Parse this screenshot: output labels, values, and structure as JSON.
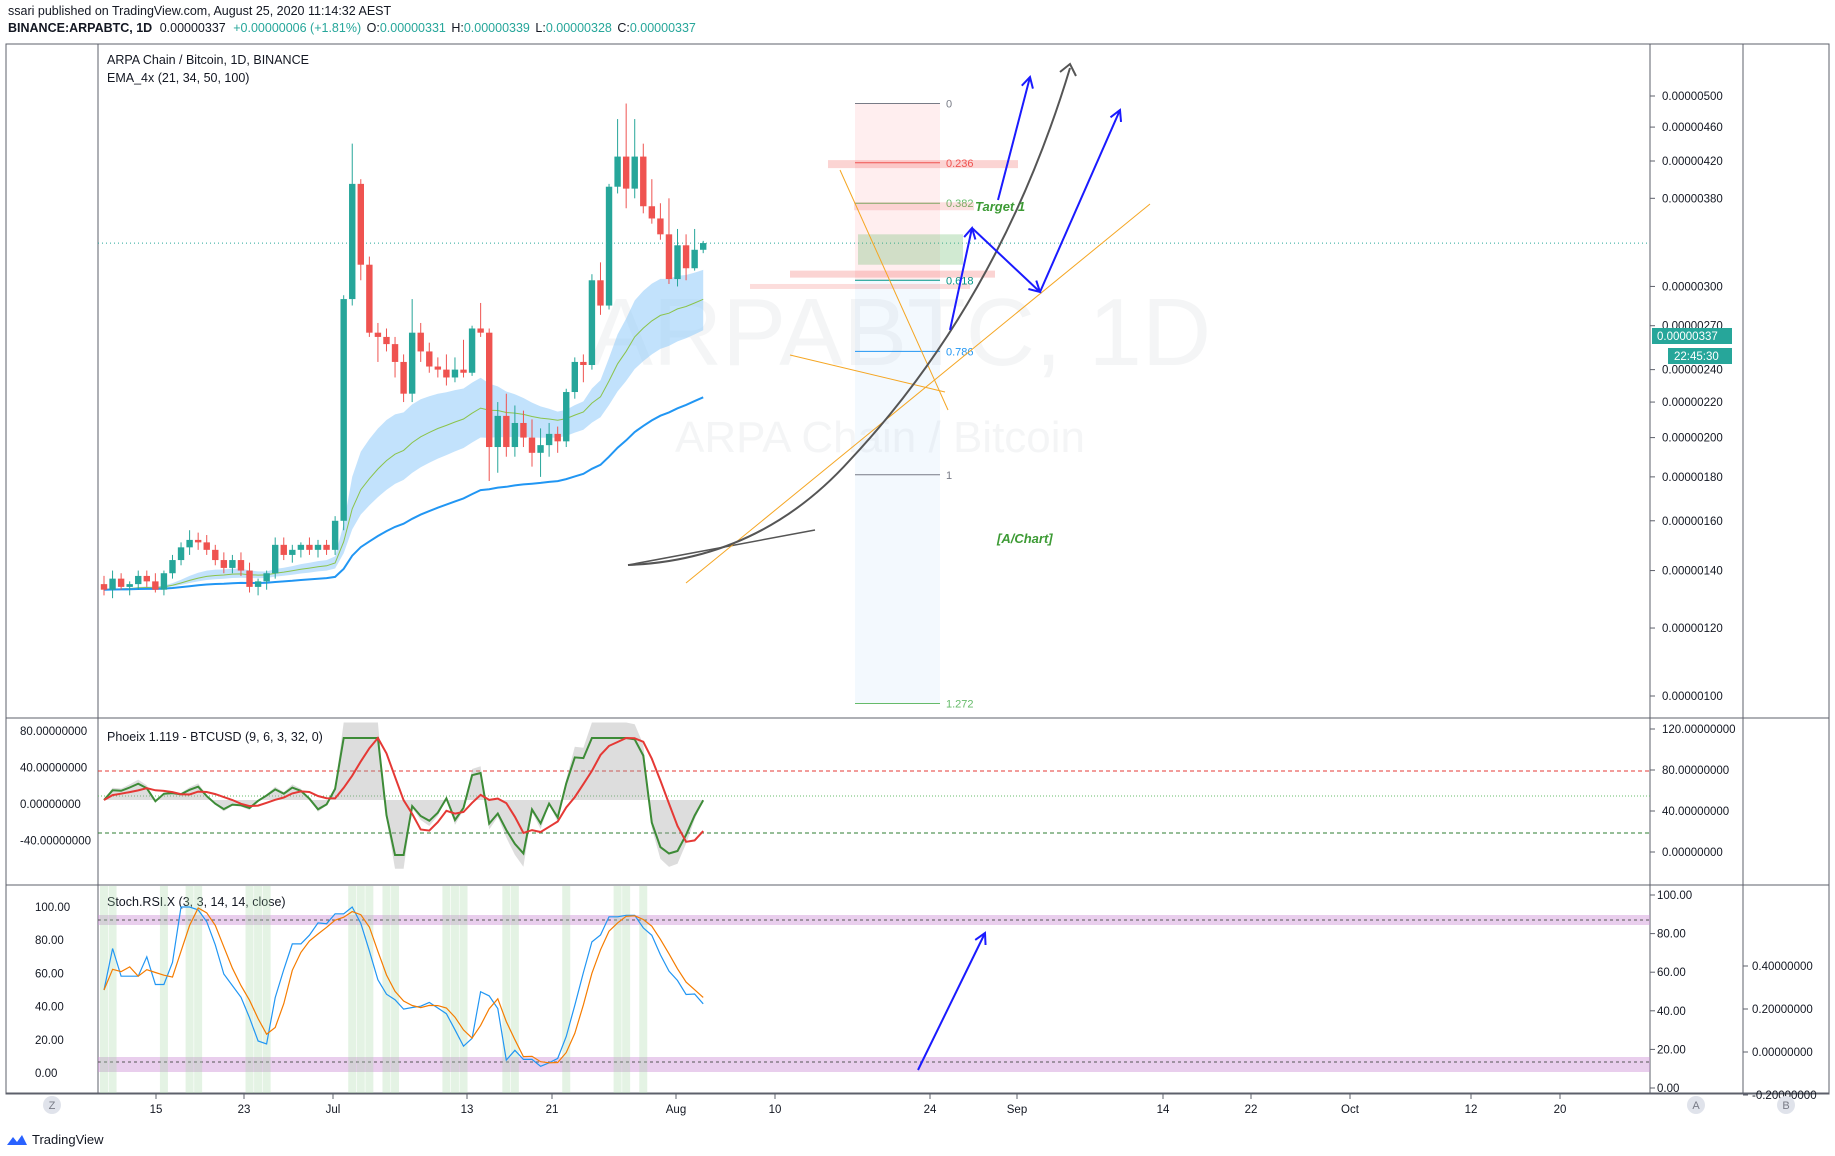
{
  "header": {
    "published": "ssari published on TradingView.com, August 25, 2020 11:14:32 AEST",
    "symbol": "BINANCE:ARPABTC, 1D",
    "last": "0.00000337",
    "change": "+0.00000006 (+1.81%)",
    "o_label": "O:",
    "o": "0.00000331",
    "h_label": "H:",
    "h": "0.00000339",
    "l_label": "L:",
    "l": "0.00000328",
    "c_label": "C:",
    "c": "0.00000337"
  },
  "main_pane": {
    "title": "ARPA Chain / Bitcoin, 1D, BINANCE",
    "indicator": "EMA_4x (21, 34, 50, 100)",
    "watermark_symbol": "ARPABTC, 1D",
    "watermark_name": "ARPA Chain / Bitcoin",
    "price_tag": "0.00000337",
    "countdown": "22:45:30",
    "annotations": {
      "target": "Target 1",
      "signature": "[A/Chart]"
    }
  },
  "osc_pane": {
    "title": "Phoeix 1.119 - BTCUSD (9, 6, 3, 32, 0)"
  },
  "stoch_pane": {
    "title": "Stoch.RSI.X (3, 3, 14, 14, close)"
  },
  "bottom_bar": {
    "left_btn": "Z",
    "right_btn_a": "A",
    "right_btn_b": "B"
  },
  "footer": {
    "brand": "TradingView"
  },
  "colors": {
    "up": "#26a69a",
    "down": "#ef5350",
    "ema_fast": "#2196f3",
    "cloud": "#90caf9",
    "arrow": "#1a1aff",
    "curve": "#555555",
    "fib_line": "#f5a623",
    "phoenix_green": "#3d8b37",
    "phoenix_red": "#e53935",
    "stoch_blue": "#2196f3",
    "stoch_orange": "#f57c00",
    "band": "#ce93d8"
  },
  "chart_data": [
    {
      "type": "candlestick",
      "title": "ARPA Chain / Bitcoin, 1D, BINANCE",
      "x_ticks": [
        "15",
        "23",
        "Jul",
        "13",
        "21",
        "Aug",
        "10",
        "24",
        "Sep",
        "14",
        "22",
        "Oct",
        "12",
        "20"
      ],
      "y_ticks": [
        "0.00000500",
        "0.00000460",
        "0.00000420",
        "0.00000380",
        "0.00000300",
        "0.00000270",
        "0.00000240",
        "0.00000220",
        "0.00000200",
        "0.00000180",
        "0.00000160",
        "0.00000140",
        "0.00000120",
        "0.00000100"
      ],
      "y_scale": "log",
      "ylim": [
        9.5e-07,
        5.4e-06
      ],
      "candles": [
        [
          1.35e-06,
          1.38e-06,
          1.31e-06,
          1.33e-06
        ],
        [
          1.33e-06,
          1.4e-06,
          1.3e-06,
          1.37e-06
        ],
        [
          1.37e-06,
          1.39e-06,
          1.33e-06,
          1.34e-06
        ],
        [
          1.34e-06,
          1.36e-06,
          1.31e-06,
          1.35e-06
        ],
        [
          1.35e-06,
          1.4e-06,
          1.33e-06,
          1.38e-06
        ],
        [
          1.38e-06,
          1.4e-06,
          1.34e-06,
          1.36e-06
        ],
        [
          1.36e-06,
          1.39e-06,
          1.32e-06,
          1.33e-06
        ],
        [
          1.33e-06,
          1.4e-06,
          1.31e-06,
          1.39e-06
        ],
        [
          1.39e-06,
          1.46e-06,
          1.37e-06,
          1.44e-06
        ],
        [
          1.44e-06,
          1.51e-06,
          1.42e-06,
          1.49e-06
        ],
        [
          1.49e-06,
          1.56e-06,
          1.46e-06,
          1.52e-06
        ],
        [
          1.52e-06,
          1.55e-06,
          1.48e-06,
          1.51e-06
        ],
        [
          1.51e-06,
          1.54e-06,
          1.46e-06,
          1.48e-06
        ],
        [
          1.48e-06,
          1.5e-06,
          1.42e-06,
          1.44e-06
        ],
        [
          1.44e-06,
          1.47e-06,
          1.39e-06,
          1.41e-06
        ],
        [
          1.41e-06,
          1.46e-06,
          1.39e-06,
          1.44e-06
        ],
        [
          1.44e-06,
          1.47e-06,
          1.38e-06,
          1.4e-06
        ],
        [
          1.4e-06,
          1.43e-06,
          1.32e-06,
          1.34e-06
        ],
        [
          1.34e-06,
          1.37e-06,
          1.31e-06,
          1.36e-06
        ],
        [
          1.36e-06,
          1.4e-06,
          1.33e-06,
          1.39e-06
        ],
        [
          1.39e-06,
          1.53e-06,
          1.37e-06,
          1.5e-06
        ],
        [
          1.5e-06,
          1.53e-06,
          1.44e-06,
          1.46e-06
        ],
        [
          1.46e-06,
          1.5e-06,
          1.43e-06,
          1.48e-06
        ],
        [
          1.48e-06,
          1.51e-06,
          1.45e-06,
          1.5e-06
        ],
        [
          1.5e-06,
          1.53e-06,
          1.46e-06,
          1.48e-06
        ],
        [
          1.48e-06,
          1.52e-06,
          1.45e-06,
          1.5e-06
        ],
        [
          1.5e-06,
          1.52e-06,
          1.46e-06,
          1.48e-06
        ],
        [
          1.48e-06,
          1.62e-06,
          1.46e-06,
          1.6e-06
        ],
        [
          1.6e-06,
          2.93e-06,
          1.56e-06,
          2.9e-06
        ],
        [
          2.9e-06,
          4.4e-06,
          2.85e-06,
          3.95e-06
        ],
        [
          3.95e-06,
          4e-06,
          3.05e-06,
          3.18e-06
        ],
        [
          3.18e-06,
          3.25e-06,
          2.62e-06,
          2.65e-06
        ],
        [
          2.65e-06,
          2.72e-06,
          2.45e-06,
          2.62e-06
        ],
        [
          2.62e-06,
          2.68e-06,
          2.52e-06,
          2.57e-06
        ],
        [
          2.57e-06,
          2.62e-06,
          2.35e-06,
          2.45e-06
        ],
        [
          2.45e-06,
          2.5e-06,
          2.2e-06,
          2.25e-06
        ],
        [
          2.25e-06,
          2.9e-06,
          2.2e-06,
          2.65e-06
        ],
        [
          2.65e-06,
          2.72e-06,
          2.45e-06,
          2.52e-06
        ],
        [
          2.52e-06,
          2.58e-06,
          2.38e-06,
          2.42e-06
        ],
        [
          2.42e-06,
          2.48e-06,
          2.35e-06,
          2.4e-06
        ],
        [
          2.4e-06,
          2.5e-06,
          2.3e-06,
          2.35e-06
        ],
        [
          2.35e-06,
          2.48e-06,
          2.32e-06,
          2.4e-06
        ],
        [
          2.4e-06,
          2.6e-06,
          2.35e-06,
          2.38e-06
        ],
        [
          2.38e-06,
          2.7e-06,
          2.36e-06,
          2.68e-06
        ],
        [
          2.68e-06,
          2.87e-06,
          2.62e-06,
          2.65e-06
        ],
        [
          2.65e-06,
          2.68e-06,
          1.78e-06,
          1.95e-06
        ],
        [
          1.95e-06,
          2.2e-06,
          1.82e-06,
          2.12e-06
        ],
        [
          2.12e-06,
          2.25e-06,
          1.9e-06,
          1.95e-06
        ],
        [
          1.95e-06,
          2.18e-06,
          1.9e-06,
          2.08e-06
        ],
        [
          2.08e-06,
          2.15e-06,
          1.95e-06,
          2e-06
        ],
        [
          2e-06,
          2.1e-06,
          1.85e-06,
          1.92e-06
        ],
        [
          1.92e-06,
          2.05e-06,
          1.8e-06,
          1.96e-06
        ],
        [
          1.96e-06,
          2.08e-06,
          1.9e-06,
          2.02e-06
        ],
        [
          2.02e-06,
          2.06e-06,
          1.92e-06,
          1.98e-06
        ],
        [
          1.98e-06,
          2.28e-06,
          1.95e-06,
          2.26e-06
        ],
        [
          2.26e-06,
          2.48e-06,
          2.22e-06,
          2.45e-06
        ],
        [
          2.45e-06,
          2.5e-06,
          2.32e-06,
          2.43e-06
        ],
        [
          2.43e-06,
          3.1e-06,
          2.4e-06,
          3.05e-06
        ],
        [
          3.05e-06,
          3.2e-06,
          2.78e-06,
          2.85e-06
        ],
        [
          2.85e-06,
          3.95e-06,
          2.82e-06,
          3.92e-06
        ],
        [
          3.92e-06,
          4.7e-06,
          3.85e-06,
          4.25e-06
        ],
        [
          4.25e-06,
          4.9e-06,
          3.7e-06,
          3.9e-06
        ],
        [
          3.9e-06,
          4.7e-06,
          3.8e-06,
          4.25e-06
        ],
        [
          4.25e-06,
          4.4e-06,
          3.65e-06,
          3.72e-06
        ],
        [
          3.72e-06,
          4e-06,
          3.55e-06,
          3.6e-06
        ],
        [
          3.6e-06,
          3.75e-06,
          3.4e-06,
          3.45e-06
        ],
        [
          3.45e-06,
          3.8e-06,
          3.02e-06,
          3.06e-06
        ],
        [
          3.06e-06,
          3.5e-06,
          3e-06,
          3.35e-06
        ],
        [
          3.35e-06,
          3.45e-06,
          3.05e-06,
          3.15e-06
        ],
        [
          3.15e-06,
          3.5e-06,
          3.13e-06,
          3.31e-06
        ],
        [
          3.31e-06,
          3.39e-06,
          3.28e-06,
          3.37e-06
        ]
      ],
      "fibonacci": [
        {
          "level": "0",
          "price": 4.9e-06
        },
        {
          "level": "0.236",
          "price": 4.18e-06
        },
        {
          "level": "0.382",
          "price": 3.75e-06
        },
        {
          "level": "0.618",
          "price": 3.05e-06
        },
        {
          "level": "0.786",
          "price": 2.52e-06
        },
        {
          "level": "1",
          "price": 1.81e-06
        },
        {
          "level": "1.272",
          "price": 9.8e-07
        }
      ]
    },
    {
      "type": "line",
      "title": "Phoeix 1.119 - BTCUSD (9, 6, 3, 32, 0)",
      "y_ticks_left": [
        "80.00000000",
        "40.00000000",
        "0.00000000",
        "-40.00000000"
      ],
      "y_ticks_right": [
        "120.00000000",
        "80.00000000",
        "40.00000000",
        "0.00000000"
      ],
      "ylim": [
        -60,
        100
      ]
    },
    {
      "type": "line",
      "title": "Stoch.RSI.X (3, 3, 14, 14, close)",
      "y_ticks_left": [
        "100.00",
        "80.00",
        "60.00",
        "40.00",
        "20.00",
        "0.00"
      ],
      "y_ticks_right_inner": [
        "100.00",
        "80.00",
        "60.00",
        "40.00",
        "20.00",
        "0.00"
      ],
      "y_ticks_right_outer": [
        "0.40000000",
        "0.20000000",
        "0.00000000",
        "-0.20000000"
      ],
      "ylim": [
        -8,
        110
      ]
    }
  ]
}
